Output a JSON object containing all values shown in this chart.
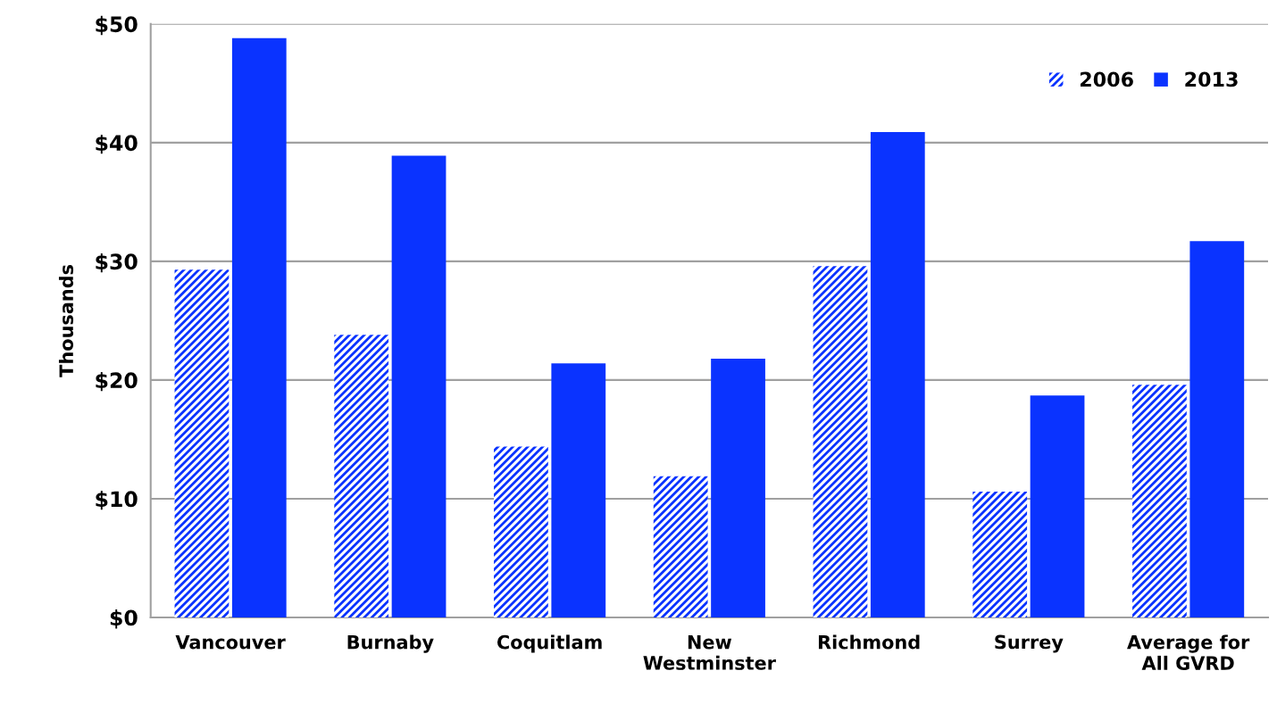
{
  "chart_data": {
    "type": "bar",
    "ylabel": "Thousands",
    "categories": [
      "Vancouver",
      "Burnaby",
      "Coquitlam",
      "New\nWestminster",
      "Richmond",
      "Surrey",
      "Average for\nAll GVRD"
    ],
    "series": [
      {
        "name": "2006",
        "color": "#0a33ff",
        "values": [
          29.3,
          23.8,
          14.4,
          11.9,
          29.6,
          10.6,
          19.6
        ]
      },
      {
        "name": "2013",
        "color": "#0a33ff",
        "values": [
          48.8,
          38.9,
          21.4,
          21.8,
          40.9,
          18.7,
          31.7
        ]
      }
    ],
    "ylim": [
      0,
      50
    ],
    "yticks": [
      {
        "value": 0,
        "label": "$0"
      },
      {
        "value": 10,
        "label": "$10"
      },
      {
        "value": 20,
        "label": "$20"
      },
      {
        "value": 30,
        "label": "$30"
      },
      {
        "value": 40,
        "label": "$40"
      },
      {
        "value": 50,
        "label": "$50"
      }
    ],
    "grid": "y",
    "legend": "top right"
  }
}
